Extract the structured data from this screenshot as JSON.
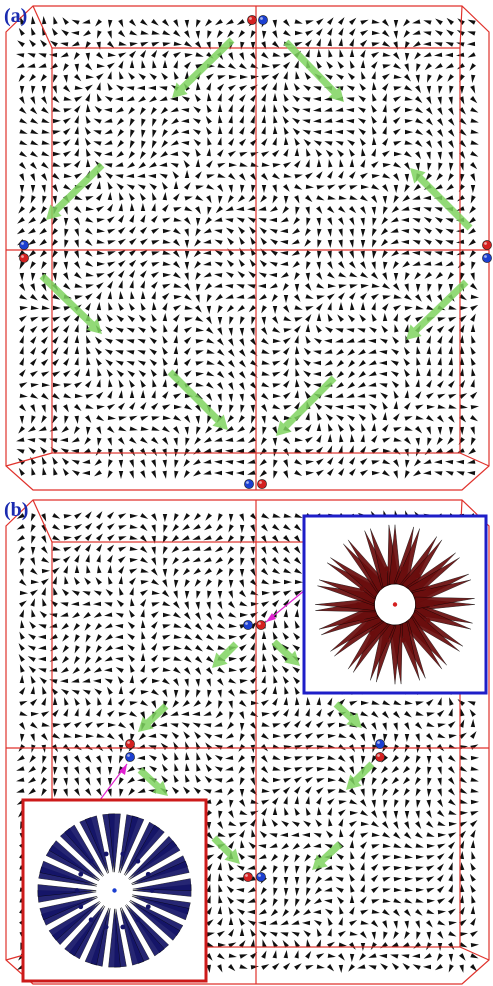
{
  "panels": {
    "a": {
      "label": "(a)"
    },
    "b": {
      "label": "(b)"
    }
  },
  "colors": {
    "grid_line": "#e0322c",
    "arrow": "#111111",
    "guide_arrow": "#7fd460",
    "red_charge": "#d42020",
    "blue_charge": "#1c3fd0",
    "inset_outward_frame": "#1e1ec8",
    "inset_inward_frame": "#cc1a1a",
    "inset_red_spikes": "#6a0d0d",
    "inset_blue_spikes": "#141468",
    "pointer": "#e020d0",
    "label": "#1a2bb0"
  },
  "insets": {
    "b_outward": {
      "description_icon": "red-hedgehog-icon",
      "frame": "blue"
    },
    "b_inward": {
      "description_icon": "blue-hedgehog-icon",
      "frame": "red"
    }
  }
}
